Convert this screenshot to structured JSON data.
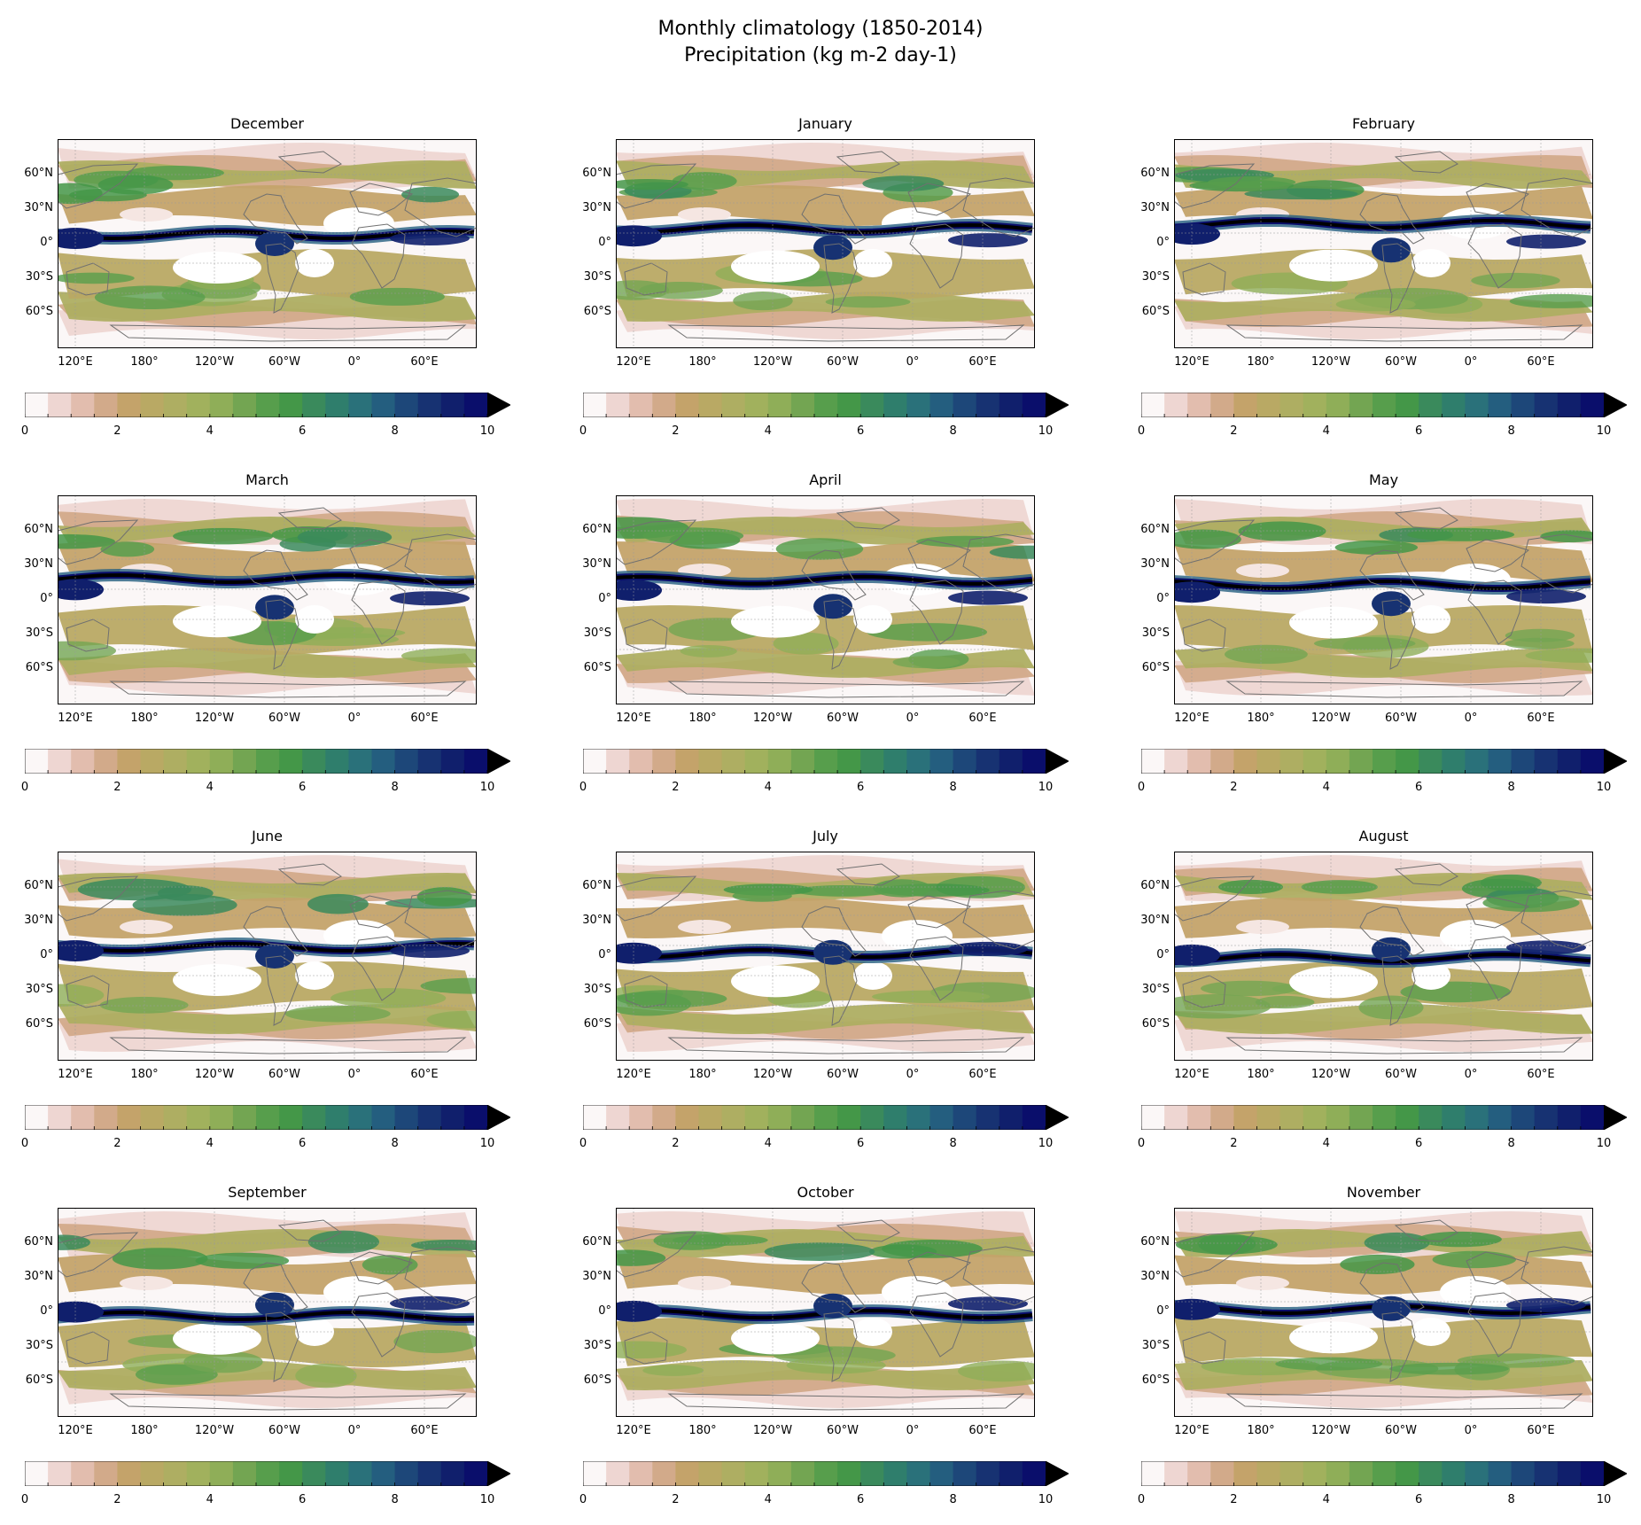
{
  "figure": {
    "title_line1": "Monthly climatology (1850-2014)",
    "title_line2": "Precipitation (kg m-2 day-1)"
  },
  "axes": {
    "lat_ticks": [
      "60°N",
      "30°N",
      "0°",
      "30°S",
      "60°S"
    ],
    "lon_ticks": [
      "120°E",
      "180°",
      "120°W",
      "60°W",
      "0°",
      "60°E"
    ]
  },
  "colorbar": {
    "min": 0,
    "max": 10,
    "step": 0.5,
    "extend": "max",
    "tick_labels": [
      "0",
      "2",
      "4",
      "6",
      "8",
      "10"
    ],
    "colors": [
      "#fbf7f7",
      "#eed6d2",
      "#e2bdae",
      "#d2aa8a",
      "#c4a36a",
      "#b9a964",
      "#aeae62",
      "#a1b15d",
      "#8fae58",
      "#73a552",
      "#579e4c",
      "#449748",
      "#3a8a5c",
      "#2f7e6c",
      "#2a717a",
      "#245e7f",
      "#1d4779",
      "#173272",
      "#101f6c",
      "#0a0e6b",
      "#000000"
    ]
  },
  "panels": [
    {
      "month": "December"
    },
    {
      "month": "January"
    },
    {
      "month": "February"
    },
    {
      "month": "March"
    },
    {
      "month": "April"
    },
    {
      "month": "May"
    },
    {
      "month": "June"
    },
    {
      "month": "July"
    },
    {
      "month": "August"
    },
    {
      "month": "September"
    },
    {
      "month": "October"
    },
    {
      "month": "November"
    }
  ]
}
